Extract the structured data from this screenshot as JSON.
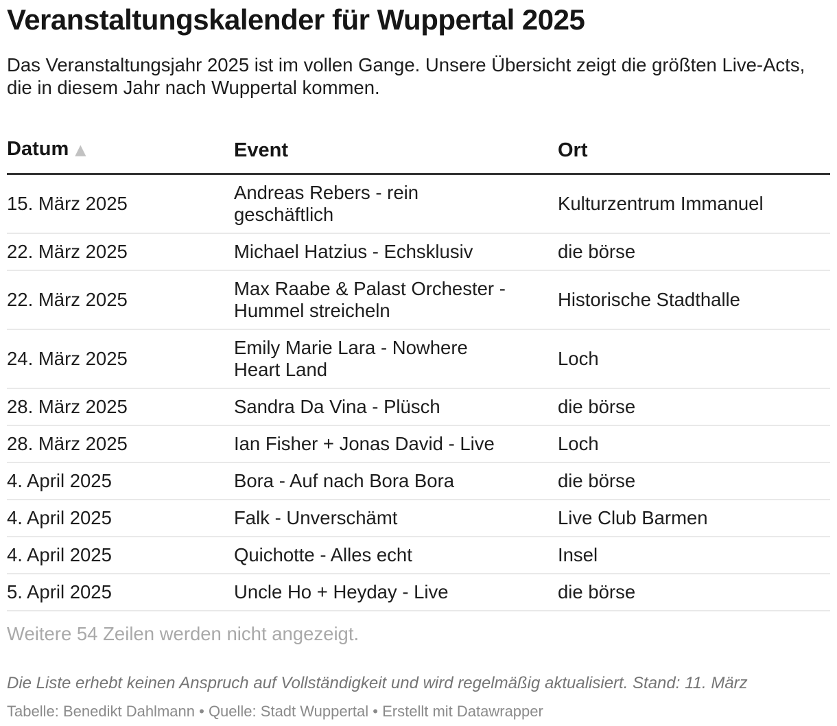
{
  "header": {
    "title": "Veranstaltungskalender für Wuppertal 2025",
    "description": "Das Veranstaltungsjahr 2025 ist im vollen Gange. Unsere Übersicht zeigt die größten Live-Acts, die in diesem Jahr nach Wuppertal kommen."
  },
  "chart_data": {
    "type": "table",
    "columns": [
      {
        "key": "datum",
        "label": "Datum",
        "sort": "ascending"
      },
      {
        "key": "event",
        "label": "Event",
        "sort": null
      },
      {
        "key": "ort",
        "label": "Ort",
        "sort": null
      }
    ],
    "rows": [
      {
        "datum": "15. März 2025",
        "event": "Andreas Rebers - rein geschäftlich",
        "ort": "Kulturzentrum Immanuel"
      },
      {
        "datum": "22. März 2025",
        "event": "Michael Hatzius - Echsklusiv",
        "ort": "die börse"
      },
      {
        "datum": "22. März 2025",
        "event": "Max Raabe & Palast Orchester - Hummel streicheln",
        "ort": "Historische Stadthalle"
      },
      {
        "datum": "24. März 2025",
        "event": "Emily Marie Lara - Nowhere Heart Land",
        "ort": "Loch"
      },
      {
        "datum": "28. März 2025",
        "event": "Sandra Da Vina - Plüsch",
        "ort": "die börse"
      },
      {
        "datum": "28. März 2025",
        "event": "Ian Fisher + Jonas David - Live",
        "ort": "Loch"
      },
      {
        "datum": "4. April 2025",
        "event": "Bora - Auf nach Bora Bora",
        "ort": "die börse"
      },
      {
        "datum": "4. April 2025",
        "event": "Falk - Unverschämt",
        "ort": "Live Club Barmen"
      },
      {
        "datum": "4. April 2025",
        "event": "Quichotte - Alles echt",
        "ort": "Insel"
      },
      {
        "datum": "5. April 2025",
        "event": "Uncle Ho + Heyday - Live",
        "ort": "die börse"
      }
    ],
    "truncation_note": "Weitere 54 Zeilen werden nicht angezeigt."
  },
  "icons": {
    "sort_ascending": "▲"
  },
  "footer": {
    "note": "Die Liste erhebt keinen Anspruch auf Vollständigkeit und wird regelmäßig aktualisiert. Stand: 11. März",
    "attribution": {
      "table_label": "Tabelle:",
      "table_author": "Benedikt Dahlmann",
      "separator": "•",
      "source_label": "Quelle:",
      "source_name": "Stadt Wuppertal",
      "created_with": "Erstellt mit Datawrapper"
    }
  },
  "colors": {
    "text": "#1d1d1d",
    "title": "#161616",
    "header_rule": "#333333",
    "row_divider": "#e9e9e9",
    "sort_icon": "#c2c2c2",
    "muted_note": "#a9a9a9",
    "footnote": "#757575",
    "attribution": "#8a8a8a",
    "bg": "#ffffff"
  }
}
